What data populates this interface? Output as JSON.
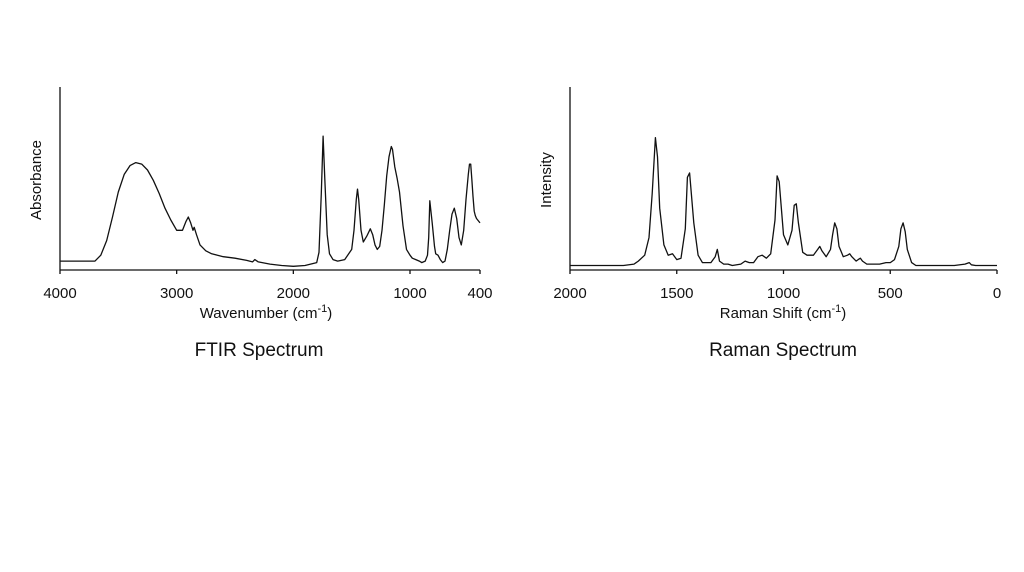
{
  "chart_data": [
    {
      "type": "line",
      "title": "FTIR Spectrum",
      "xlabel": "Wavenumber (cm",
      "xlabel_sup": "-1",
      "xlabel_end": ")",
      "ylabel": "Absorbance",
      "xlim": [
        4000,
        400
      ],
      "ylim": [
        0,
        1
      ],
      "x_reversed": true,
      "y_ticks_shown": false,
      "x_ticks": [
        4000,
        3000,
        2000,
        1000,
        400
      ],
      "x_tick_labels": [
        "4000",
        "3000",
        "2000",
        "1000",
        "400"
      ],
      "grid": false,
      "series": [
        {
          "x": [
            4000,
            3700,
            3650,
            3600,
            3550,
            3500,
            3450,
            3400,
            3350,
            3300,
            3250,
            3200,
            3150,
            3100,
            3050,
            3000,
            2950,
            2920,
            2900,
            2880,
            2860,
            2850,
            2830,
            2800,
            2750,
            2700,
            2600,
            2500,
            2400,
            2350,
            2330,
            2300,
            2200,
            2100,
            2000,
            1900,
            1800,
            1780,
            1760,
            1745,
            1730,
            1710,
            1690,
            1660,
            1620,
            1560,
            1500,
            1480,
            1460,
            1450,
            1440,
            1420,
            1400,
            1370,
            1340,
            1320,
            1300,
            1280,
            1260,
            1240,
            1220,
            1200,
            1180,
            1160,
            1150,
            1130,
            1110,
            1090,
            1060,
            1030,
            1000,
            980,
            950,
            920,
            900,
            870,
            850,
            840,
            830,
            810,
            790,
            780,
            760,
            740,
            720,
            700,
            680,
            660,
            640,
            620,
            600,
            580,
            560,
            540,
            520,
            500,
            490,
            480,
            470,
            460,
            450,
            440,
            430,
            420,
            410,
            400
          ],
          "y": [
            0.04,
            0.04,
            0.08,
            0.18,
            0.34,
            0.51,
            0.63,
            0.69,
            0.71,
            0.7,
            0.66,
            0.59,
            0.5,
            0.4,
            0.32,
            0.25,
            0.25,
            0.31,
            0.34,
            0.3,
            0.25,
            0.27,
            0.22,
            0.15,
            0.11,
            0.09,
            0.07,
            0.06,
            0.045,
            0.035,
            0.05,
            0.035,
            0.02,
            0.01,
            0.005,
            0.01,
            0.03,
            0.1,
            0.5,
            0.89,
            0.6,
            0.22,
            0.09,
            0.05,
            0.04,
            0.05,
            0.12,
            0.25,
            0.46,
            0.53,
            0.46,
            0.25,
            0.17,
            0.21,
            0.26,
            0.22,
            0.15,
            0.12,
            0.14,
            0.25,
            0.42,
            0.62,
            0.75,
            0.82,
            0.8,
            0.68,
            0.6,
            0.51,
            0.28,
            0.12,
            0.08,
            0.06,
            0.05,
            0.04,
            0.03,
            0.04,
            0.08,
            0.2,
            0.45,
            0.3,
            0.14,
            0.09,
            0.08,
            0.05,
            0.03,
            0.04,
            0.12,
            0.25,
            0.36,
            0.4,
            0.33,
            0.2,
            0.15,
            0.25,
            0.46,
            0.63,
            0.7,
            0.7,
            0.6,
            0.48,
            0.38,
            0.35,
            0.33,
            0.32,
            0.31,
            0.3
          ]
        }
      ]
    },
    {
      "type": "line",
      "title": "Raman Spectrum",
      "xlabel": "Raman Shift (cm",
      "xlabel_sup": "-1",
      "xlabel_end": ")",
      "ylabel": "Intensity",
      "xlim": [
        2000,
        0
      ],
      "ylim": [
        0,
        1
      ],
      "x_reversed": true,
      "y_ticks_shown": false,
      "x_ticks": [
        2000,
        1500,
        1000,
        500,
        0
      ],
      "x_tick_labels": [
        "2000",
        "1500",
        "1000",
        "500",
        "0"
      ],
      "grid": false,
      "series": [
        {
          "x": [
            2000,
            1900,
            1800,
            1750,
            1700,
            1680,
            1650,
            1630,
            1615,
            1600,
            1590,
            1580,
            1560,
            1540,
            1520,
            1500,
            1480,
            1460,
            1450,
            1440,
            1420,
            1400,
            1380,
            1340,
            1320,
            1310,
            1300,
            1280,
            1260,
            1240,
            1200,
            1180,
            1160,
            1140,
            1120,
            1100,
            1080,
            1060,
            1040,
            1030,
            1020,
            1000,
            980,
            960,
            950,
            940,
            930,
            910,
            890,
            860,
            840,
            830,
            820,
            800,
            780,
            770,
            760,
            750,
            740,
            720,
            700,
            690,
            680,
            660,
            650,
            640,
            630,
            610,
            580,
            550,
            520,
            500,
            480,
            460,
            450,
            440,
            430,
            420,
            400,
            380,
            350,
            300,
            250,
            200,
            150,
            130,
            120,
            100,
            50,
            0
          ],
          "y": [
            0.01,
            0.01,
            0.01,
            0.01,
            0.02,
            0.04,
            0.08,
            0.2,
            0.5,
            0.88,
            0.75,
            0.4,
            0.15,
            0.08,
            0.09,
            0.05,
            0.06,
            0.26,
            0.61,
            0.64,
            0.3,
            0.08,
            0.03,
            0.03,
            0.07,
            0.12,
            0.04,
            0.02,
            0.02,
            0.01,
            0.02,
            0.04,
            0.03,
            0.03,
            0.07,
            0.08,
            0.06,
            0.09,
            0.32,
            0.62,
            0.58,
            0.22,
            0.15,
            0.25,
            0.42,
            0.43,
            0.3,
            0.1,
            0.08,
            0.08,
            0.12,
            0.14,
            0.11,
            0.07,
            0.12,
            0.22,
            0.3,
            0.26,
            0.14,
            0.07,
            0.08,
            0.09,
            0.07,
            0.04,
            0.05,
            0.06,
            0.04,
            0.02,
            0.02,
            0.02,
            0.03,
            0.03,
            0.05,
            0.14,
            0.26,
            0.3,
            0.24,
            0.12,
            0.03,
            0.01,
            0.01,
            0.01,
            0.01,
            0.01,
            0.02,
            0.03,
            0.015,
            0.01,
            0.01,
            0.01
          ]
        }
      ]
    }
  ]
}
